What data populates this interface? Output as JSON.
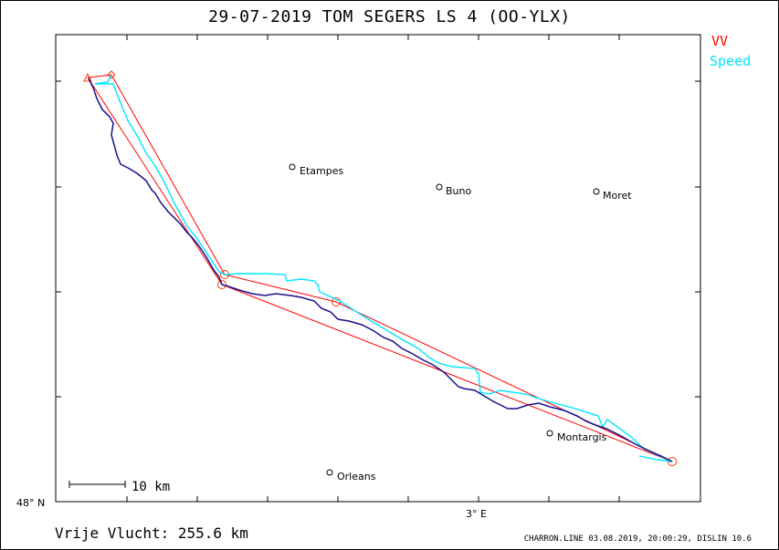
{
  "title": "29-07-2019   TOM SEGERS   LS 4 (OO-YLX)",
  "legend": {
    "vv": {
      "label": "VV",
      "color": "#ff0000"
    },
    "speed": {
      "label": "Speed",
      "color": "#00e5ff"
    }
  },
  "towns": [
    {
      "name": "Etampes"
    },
    {
      "name": "Buno"
    },
    {
      "name": "Moret"
    },
    {
      "name": "Montargis"
    },
    {
      "name": "Orleans"
    }
  ],
  "axes": {
    "lat_label": "48° N",
    "lon_label": "3° E"
  },
  "scale_bar": {
    "label": "10  km"
  },
  "distance": "Vrije Vlucht:  255.6 km",
  "footer": "CHARRON.LINE 03.08.2019, 20:00:29, DISLIN 10.6",
  "colors": {
    "track": "#1a0f8c",
    "speed_track": "#00e5ff",
    "vv_triangle": "#ff0000"
  }
}
